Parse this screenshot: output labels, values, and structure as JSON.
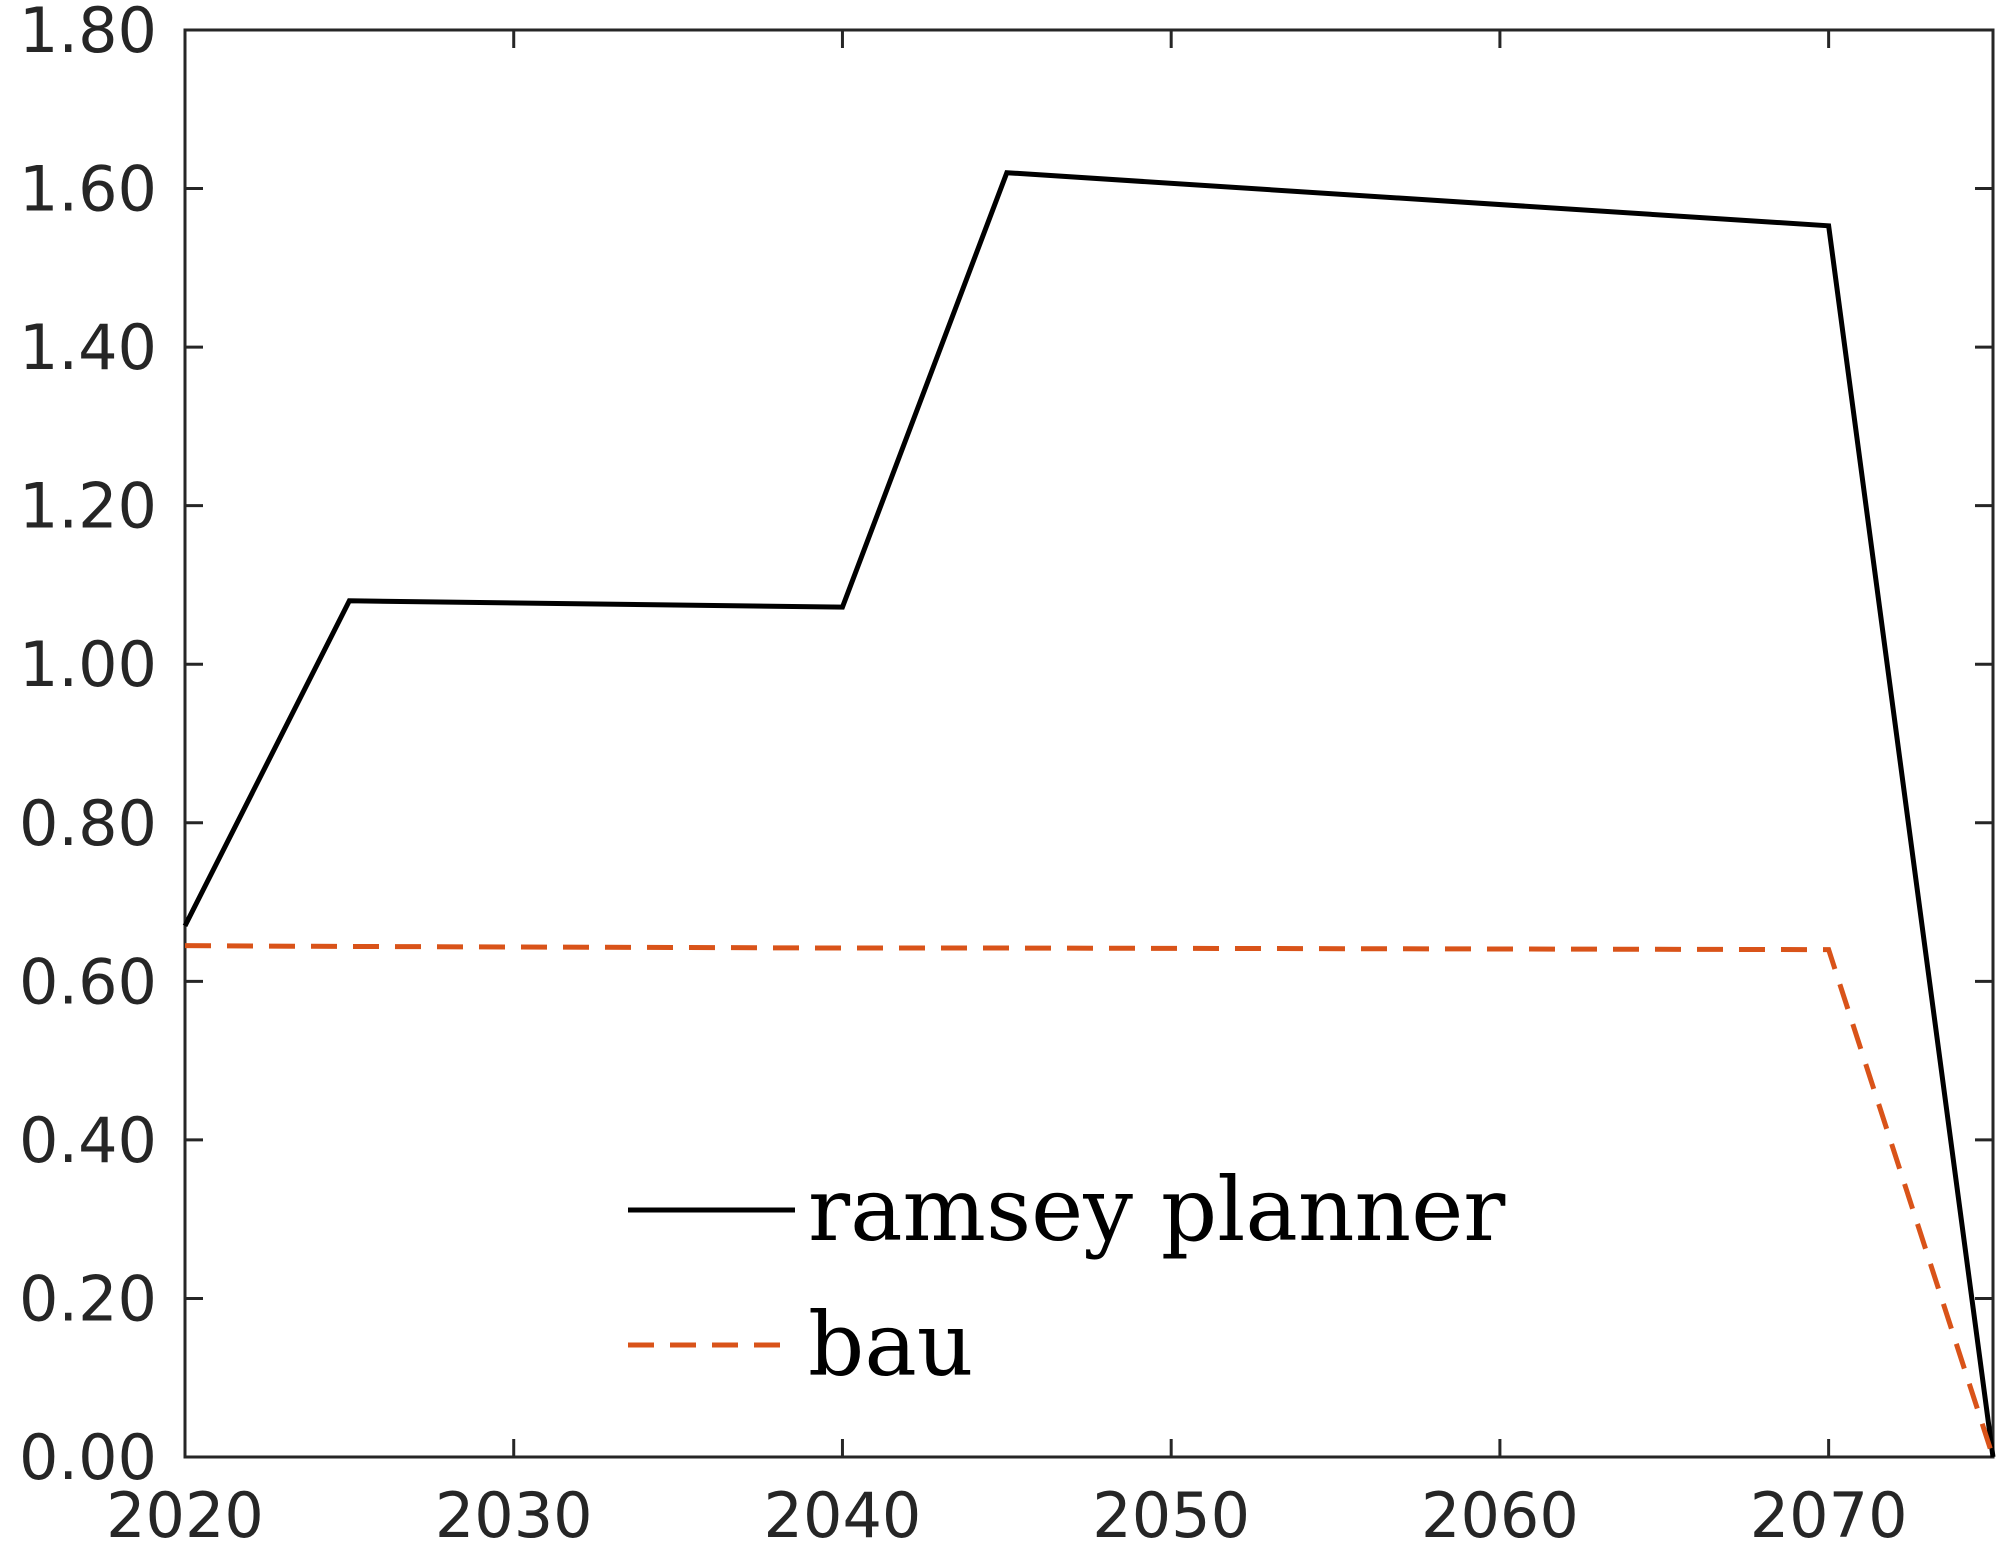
{
  "chart_data": {
    "type": "line",
    "xlim": [
      2020,
      2075
    ],
    "ylim": [
      0,
      1.8
    ],
    "xticks": [
      2020,
      2030,
      2040,
      2050,
      2060,
      2070
    ],
    "xtick_labels": [
      "2020",
      "2030",
      "2040",
      "2050",
      "2060",
      "2070"
    ],
    "yticks": [
      0,
      0.2,
      0.4,
      0.6,
      0.8,
      1.0,
      1.2,
      1.4,
      1.6,
      1.8
    ],
    "ytick_labels": [
      "0.00",
      "0.20",
      "0.40",
      "0.60",
      "0.80",
      "1.00",
      "1.20",
      "1.40",
      "1.60",
      "1.80"
    ],
    "grid": false,
    "legend_position": "bottom-center",
    "title": "",
    "xlabel": "",
    "ylabel": "",
    "series": [
      {
        "name": "ramsey planner",
        "color": "#000000",
        "style": "solid",
        "x": [
          2020,
          2025,
          2040,
          2045,
          2070,
          2075
        ],
        "y": [
          0.67,
          1.08,
          1.072,
          1.62,
          1.553,
          0.0
        ]
      },
      {
        "name": "bau",
        "color": "#D95319",
        "style": "dashed",
        "x": [
          2020,
          2025,
          2040,
          2045,
          2070,
          2075
        ],
        "y": [
          0.645,
          0.644,
          0.642,
          0.642,
          0.64,
          0.0
        ]
      }
    ]
  }
}
